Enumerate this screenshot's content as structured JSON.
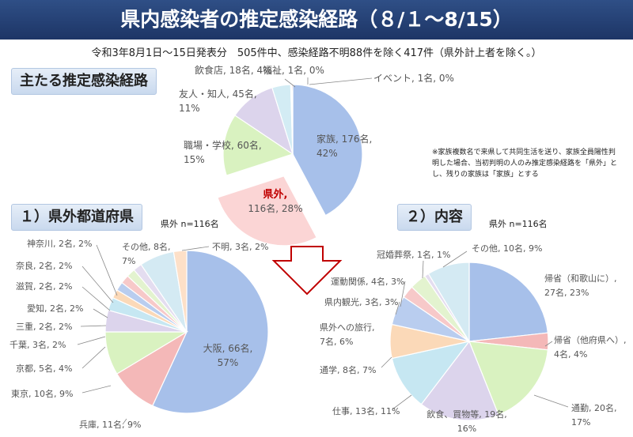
{
  "header": {
    "title": "県内感染者の推定感染経路（８/１～8/15）"
  },
  "subtitle": "令和3年8月1日～15日発表分　505件中、感染経路不明88件を除く417件（県外計上者を除く。）",
  "sections": {
    "main": "主たる推定感染経路",
    "pref": "１）県外都道府県",
    "content": "２）内容",
    "pref_n": "県外  n=116名",
    "content_n": "県外  n=116名"
  },
  "note": "※家族複数名で来県して共同生活を送り、家族全員陽性判明した場合、当初判明の人のみ推定感染経路を「県外」とし、残りの家族は「家族」とする",
  "colors": {
    "header_bg": "#1d3566",
    "arrow": "#c00000",
    "highlight": "#c00000"
  },
  "chart_data": [
    {
      "type": "pie",
      "title": "主たる推定感染経路",
      "slices": [
        {
          "name": "家族",
          "value": 176,
          "pct": 42,
          "label1": "家族, 176名,",
          "label2": "42%",
          "color": "#a7c0ea"
        },
        {
          "name": "県外",
          "value": 116,
          "pct": 28,
          "label1": "県外,",
          "label2": "116名, 28%",
          "color": "#fbd5d5",
          "exploded": true
        },
        {
          "name": "職場・学校",
          "value": 60,
          "pct": 15,
          "label1": "職場・学校, 60名,",
          "label2": "15%",
          "color": "#d9f2c0"
        },
        {
          "name": "友人・知人",
          "value": 45,
          "pct": 11,
          "label1": "友人・知人, 45名,",
          "label2": "11%",
          "color": "#dcd4ec"
        },
        {
          "name": "飲食店",
          "value": 18,
          "pct": 4,
          "label1": "飲食店, 18名, 4%",
          "label2": "",
          "color": "#d3ecf4"
        },
        {
          "name": "福祉",
          "value": 1,
          "pct": 0,
          "label1": "福祉, 1名, 0%",
          "label2": "",
          "color": "#fde0c8"
        },
        {
          "name": "イベント",
          "value": 1,
          "pct": 0,
          "label1": "イベント, 1名, 0%",
          "label2": "",
          "color": "#c0392b"
        }
      ]
    },
    {
      "type": "pie",
      "title": "１）県外都道府県",
      "slices": [
        {
          "name": "大阪",
          "value": 66,
          "pct": 57,
          "label1": "大阪, 66名,",
          "label2": "57%",
          "color": "#a7c0ea"
        },
        {
          "name": "兵庫",
          "value": 11,
          "pct": 9,
          "label1": "兵庫, 11名, 9%",
          "label2": "",
          "color": "#f4b8b8"
        },
        {
          "name": "東京",
          "value": 10,
          "pct": 9,
          "label1": "東京, 10名, 9%",
          "label2": "",
          "color": "#d9f2c0"
        },
        {
          "name": "京都",
          "value": 5,
          "pct": 4,
          "label1": "京都, 5名, 4%",
          "label2": "",
          "color": "#dcd4ec"
        },
        {
          "name": "千葉",
          "value": 3,
          "pct": 2,
          "label1": "千葉, 3名, 2%",
          "label2": "",
          "color": "#c6e7f2"
        },
        {
          "name": "三重",
          "value": 2,
          "pct": 2,
          "label1": "三重, 2名, 2%",
          "label2": "",
          "color": "#fbd9b8"
        },
        {
          "name": "愛知",
          "value": 2,
          "pct": 2,
          "label1": "愛知, 2名, 2%",
          "label2": "",
          "color": "#b9cdef"
        },
        {
          "name": "滋賀",
          "value": 2,
          "pct": 2,
          "label1": "滋賀, 2名, 2%",
          "label2": "",
          "color": "#f7c9c9"
        },
        {
          "name": "奈良",
          "value": 2,
          "pct": 2,
          "label1": "奈良, 2名, 2%",
          "label2": "",
          "color": "#e3f3cf"
        },
        {
          "name": "神奈川",
          "value": 2,
          "pct": 2,
          "label1": "神奈川, 2名, 2%",
          "label2": "",
          "color": "#e4ddf0"
        },
        {
          "name": "その他",
          "value": 8,
          "pct": 7,
          "label1": "その他, 8名,",
          "label2": "7%",
          "color": "#d4eaf3"
        },
        {
          "name": "不明",
          "value": 3,
          "pct": 2,
          "label1": "不明, 3名, 2%",
          "label2": "",
          "color": "#fde0c8"
        }
      ]
    },
    {
      "type": "pie",
      "title": "２）内容",
      "slices": [
        {
          "name": "帰省(和歌山に)",
          "value": 27,
          "pct": 23,
          "label1": "帰省（和歌山に）,",
          "label2": "27名, 23%",
          "color": "#a7c0ea"
        },
        {
          "name": "帰省(他府県へ)",
          "value": 4,
          "pct": 4,
          "label1": "帰省（他府県へ）,",
          "label2": "4名, 4%",
          "color": "#f4b8b8"
        },
        {
          "name": "通勤",
          "value": 20,
          "pct": 17,
          "label1": "通勤, 20名,",
          "label2": "17%",
          "color": "#d9f2c0"
        },
        {
          "name": "飲食、買物等",
          "value": 19,
          "pct": 16,
          "label1": "飲食、買物等, 19名,",
          "label2": "16%",
          "color": "#dcd4ec"
        },
        {
          "name": "仕事",
          "value": 13,
          "pct": 11,
          "label1": "仕事, 13名, 11%",
          "label2": "",
          "color": "#c6e7f2"
        },
        {
          "name": "通学",
          "value": 8,
          "pct": 7,
          "label1": "通学, 8名, 7%",
          "label2": "",
          "color": "#fbd9b8"
        },
        {
          "name": "県外への旅行",
          "value": 7,
          "pct": 6,
          "label1": "県外への旅行,",
          "label2": "7名, 6%",
          "color": "#b9cdef"
        },
        {
          "name": "県内観光",
          "value": 3,
          "pct": 3,
          "label1": "県内観光, 3名, 3%",
          "label2": "",
          "color": "#f7c9c9"
        },
        {
          "name": "運動関係",
          "value": 4,
          "pct": 3,
          "label1": "運動関係, 4名, 3%",
          "label2": "",
          "color": "#e3f3cf"
        },
        {
          "name": "冠婚葬祭",
          "value": 1,
          "pct": 1,
          "label1": "冠婚葬祭, 1名, 1%",
          "label2": "",
          "color": "#e4ddf0"
        },
        {
          "name": "その他",
          "value": 10,
          "pct": 9,
          "label1": "その他, 10名, 9%",
          "label2": "",
          "color": "#d4eaf3"
        }
      ]
    }
  ]
}
